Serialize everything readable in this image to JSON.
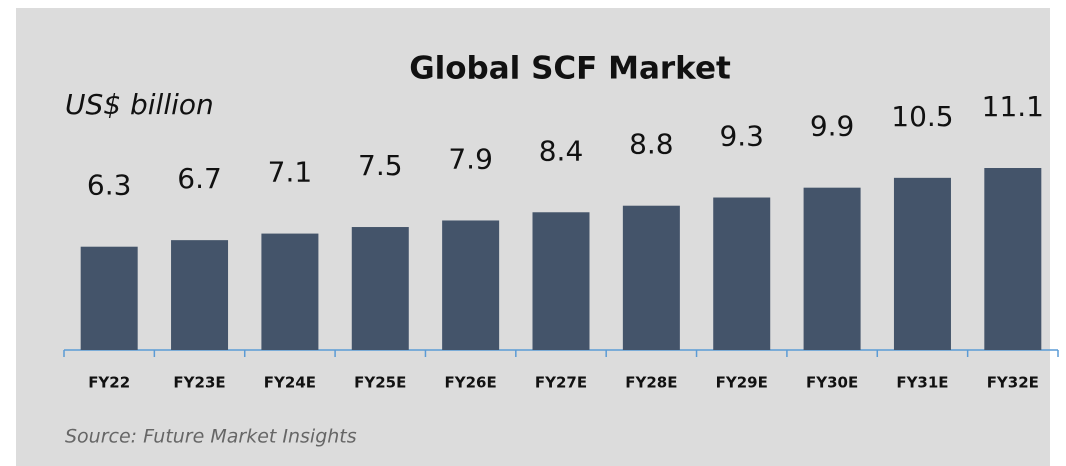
{
  "chart_data": {
    "type": "bar",
    "title": "Global SCF Market",
    "subtitle": "US$ billion",
    "source": "Source:  Future Market Insights",
    "categories": [
      "FY22",
      "FY23E",
      "FY24E",
      "FY25E",
      "FY26E",
      "FY27E",
      "FY28E",
      "FY29E",
      "FY30E",
      "FY31E",
      "FY32E"
    ],
    "values": [
      6.3,
      6.7,
      7.1,
      7.5,
      7.9,
      8.4,
      8.8,
      9.3,
      9.9,
      10.5,
      11.1
    ],
    "color": "#44546a"
  }
}
